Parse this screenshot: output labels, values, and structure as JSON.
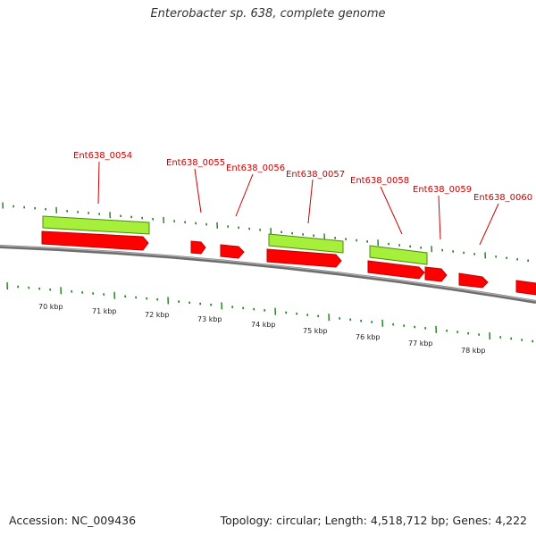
{
  "title": "Enterobacter sp. 638, complete genome",
  "footer": {
    "accession": "Accession: NC_009436",
    "summary": "Topology: circular; Length: 4,518,712 bp; Genes: 4,222"
  },
  "colors": {
    "cds_forward": "#ff0000",
    "cds_reverse_shade": "#c40000",
    "rna_highlight": "#a6ef3a",
    "rna_highlight_edge": "#4f8c0a",
    "backbone": "#6e6e6e",
    "tick_major": "#1a7f1a",
    "tick_minor": "#1a7f1a",
    "label_text": "#cc0000"
  },
  "genes": [
    {
      "id": "Ent638_0054",
      "label": "Ent638_0054"
    },
    {
      "id": "Ent638_0055",
      "label": "Ent638_0055"
    },
    {
      "id": "Ent638_0056",
      "label": "Ent638_0056"
    },
    {
      "id": "Ent638_0057",
      "label": "Ent638_0057"
    },
    {
      "id": "Ent638_0058",
      "label": "Ent638_0058"
    },
    {
      "id": "Ent638_0059",
      "label": "Ent638_0059"
    },
    {
      "id": "Ent638_0060",
      "label": "Ent638_0060"
    }
  ],
  "kbp_labels": [
    "70 kbp",
    "71 kbp",
    "72 kbp",
    "73 kbp",
    "74 kbp",
    "75 kbp",
    "76 kbp",
    "77 kbp",
    "78 kbp"
  ]
}
